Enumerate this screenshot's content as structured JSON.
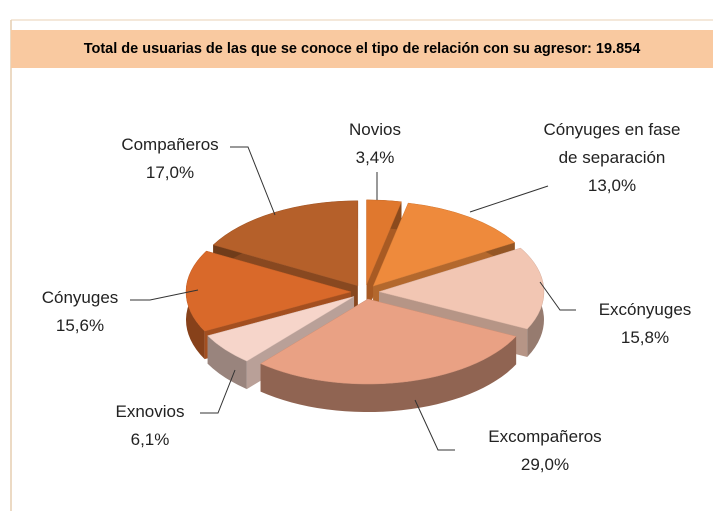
{
  "chart_data": {
    "type": "pie",
    "title": "Total de usuarias de las que se conoce el tipo de relación con su agresor: 19.854",
    "categories": [
      "Novios",
      "Cónyuges en fase de separación",
      "Excónyuges",
      "Excompañeros",
      "Exnovios",
      "Cónyuges",
      "Compañeros"
    ],
    "values": [
      3.4,
      13.0,
      15.8,
      29.0,
      6.1,
      15.6,
      17.0
    ],
    "value_labels": [
      "3,4%",
      "13,0%",
      "15,8%",
      "29,0%",
      "6,1%",
      "15,6%",
      "17,0%"
    ],
    "colors": [
      "#e0782e",
      "#ee8a3c",
      "#f2c6b3",
      "#e9a184",
      "#f6d5ca",
      "#d9692a",
      "#b5602a"
    ]
  }
}
